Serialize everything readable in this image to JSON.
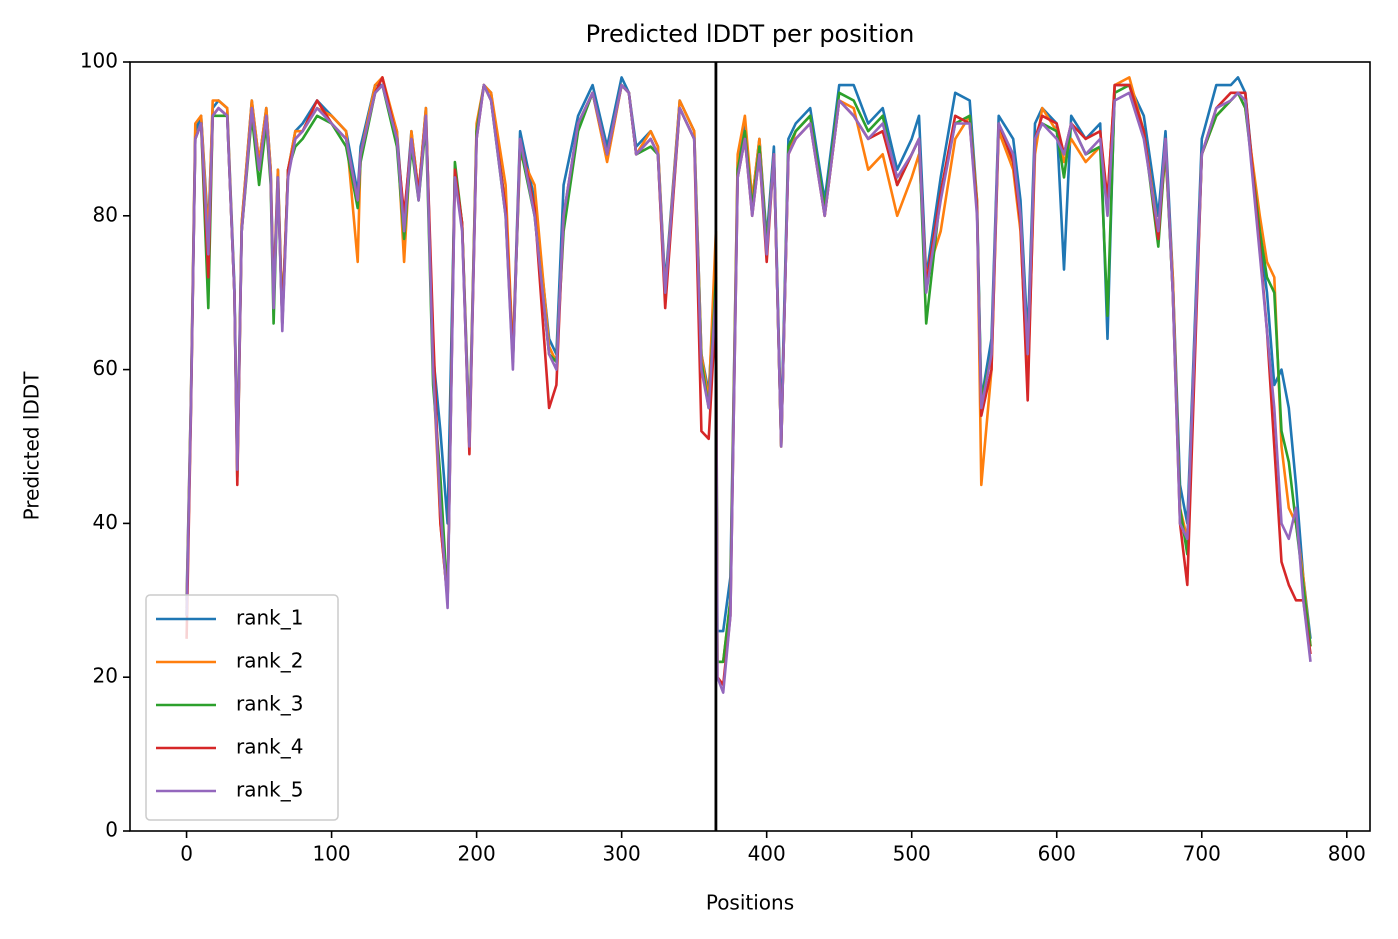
{
  "chart_data": {
    "type": "line",
    "title": "Predicted lDDT per position",
    "xlabel": "Positions",
    "ylabel": "Predicted lDDT",
    "xlim": [
      -39,
      816
    ],
    "xticks": [
      0,
      100,
      200,
      300,
      400,
      500,
      600,
      700,
      800
    ],
    "ylim": [
      0,
      100
    ],
    "yticks": [
      0,
      20,
      40,
      60,
      80,
      100
    ],
    "legend": "lower left",
    "vline": 365,
    "vline_color": "#000000",
    "x": [
      0,
      3,
      6,
      10,
      15,
      18,
      22,
      28,
      33,
      35,
      38,
      45,
      50,
      55,
      58,
      60,
      63,
      66,
      70,
      75,
      80,
      90,
      100,
      110,
      118,
      120,
      130,
      135,
      145,
      150,
      155,
      160,
      165,
      170,
      175,
      180,
      185,
      190,
      195,
      200,
      205,
      210,
      220,
      225,
      230,
      240,
      250,
      255,
      260,
      270,
      280,
      290,
      300,
      305,
      310,
      320,
      325,
      330,
      340,
      350,
      355,
      360,
      365,
      366,
      370,
      375,
      380,
      385,
      390,
      395,
      400,
      405,
      410,
      415,
      420,
      430,
      440,
      450,
      460,
      470,
      480,
      490,
      500,
      505,
      510,
      520,
      530,
      540,
      545,
      548,
      555,
      560,
      570,
      575,
      580,
      585,
      590,
      600,
      605,
      610,
      620,
      630,
      635,
      640,
      650,
      660,
      670,
      675,
      680,
      685,
      690,
      700,
      710,
      720,
      725,
      730,
      740,
      745,
      750,
      755,
      760,
      765,
      770,
      775
    ],
    "series": [
      {
        "name": "rank_1",
        "color": "#1f77b4",
        "values": [
          30,
          56,
          91,
          93,
          78,
          94,
          95,
          94,
          71,
          48,
          79,
          95,
          87,
          94,
          86,
          70,
          86,
          66,
          86,
          91,
          92,
          95,
          93,
          91,
          83,
          89,
          97,
          97,
          91,
          79,
          91,
          83,
          94,
          62,
          52,
          40,
          86,
          79,
          52,
          91,
          97,
          96,
          81,
          62,
          91,
          82,
          64,
          62,
          84,
          93,
          97,
          89,
          98,
          96,
          89,
          91,
          89,
          71,
          95,
          91,
          62,
          57,
          74,
          26,
          26,
          33,
          87,
          92,
          82,
          90,
          77,
          89,
          52,
          90,
          92,
          94,
          82,
          97,
          97,
          92,
          94,
          86,
          90,
          93,
          72,
          85,
          96,
          95,
          82,
          56,
          64,
          93,
          90,
          82,
          64,
          92,
          94,
          92,
          73,
          93,
          90,
          92,
          64,
          97,
          97,
          93,
          80,
          91,
          72,
          45,
          40,
          90,
          97,
          97,
          98,
          96,
          77,
          70,
          58,
          60,
          55,
          45,
          33,
          25
        ]
      },
      {
        "name": "rank_2",
        "color": "#ff7f0e",
        "values": [
          29,
          56,
          92,
          93,
          77,
          95,
          95,
          94,
          70,
          47,
          79,
          95,
          87,
          94,
          86,
          69,
          86,
          67,
          86,
          91,
          91,
          94,
          93,
          91,
          74,
          88,
          97,
          98,
          91,
          74,
          91,
          83,
          94,
          60,
          40,
          30,
          86,
          79,
          51,
          92,
          97,
          96,
          84,
          62,
          88,
          84,
          63,
          61,
          79,
          92,
          96,
          87,
          97,
          96,
          88,
          91,
          89,
          70,
          95,
          91,
          62,
          56,
          78,
          22,
          22,
          30,
          88,
          93,
          82,
          90,
          76,
          88,
          50,
          88,
          91,
          93,
          80,
          95,
          94,
          86,
          88,
          80,
          85,
          88,
          72,
          78,
          90,
          93,
          82,
          45,
          60,
          91,
          86,
          78,
          58,
          88,
          94,
          91,
          87,
          90,
          87,
          89,
          82,
          97,
          98,
          91,
          78,
          88,
          72,
          42,
          38,
          88,
          93,
          95,
          96,
          94,
          80,
          74,
          72,
          50,
          42,
          40,
          33,
          24
        ]
      },
      {
        "name": "rank_3",
        "color": "#2ca02c",
        "values": [
          28,
          55,
          90,
          92,
          68,
          93,
          93,
          93,
          70,
          46,
          78,
          93,
          84,
          92,
          84,
          66,
          85,
          66,
          86,
          89,
          90,
          93,
          92,
          89,
          81,
          87,
          96,
          97,
          89,
          77,
          89,
          82,
          92,
          58,
          46,
          30,
          87,
          79,
          50,
          91,
          97,
          95,
          80,
          61,
          89,
          80,
          62,
          61,
          78,
          91,
          96,
          88,
          97,
          96,
          88,
          89,
          88,
          69,
          94,
          90,
          61,
          55,
          72,
          22,
          22,
          30,
          86,
          91,
          81,
          89,
          76,
          88,
          50,
          89,
          91,
          93,
          81,
          96,
          95,
          91,
          93,
          84,
          88,
          90,
          66,
          83,
          92,
          93,
          81,
          56,
          62,
          92,
          87,
          80,
          62,
          90,
          92,
          91,
          85,
          92,
          88,
          89,
          67,
          96,
          97,
          91,
          76,
          89,
          70,
          42,
          36,
          88,
          93,
          95,
          96,
          94,
          78,
          72,
          70,
          52,
          48,
          40,
          32,
          24
        ]
      },
      {
        "name": "rank_4",
        "color": "#d62728",
        "values": [
          25,
          54,
          90,
          92,
          72,
          93,
          94,
          93,
          70,
          45,
          78,
          94,
          86,
          93,
          85,
          69,
          85,
          66,
          86,
          90,
          91,
          95,
          92,
          90,
          82,
          88,
          96,
          98,
          90,
          80,
          90,
          83,
          93,
          65,
          40,
          30,
          86,
          79,
          49,
          90,
          97,
          95,
          81,
          61,
          90,
          81,
          55,
          58,
          80,
          92,
          96,
          88,
          97,
          96,
          88,
          90,
          88,
          68,
          94,
          90,
          52,
          51,
          68,
          20,
          19,
          28,
          85,
          90,
          80,
          88,
          74,
          88,
          50,
          88,
          90,
          92,
          80,
          95,
          93,
          90,
          91,
          84,
          88,
          90,
          71,
          83,
          93,
          92,
          81,
          54,
          60,
          92,
          87,
          79,
          56,
          90,
          93,
          92,
          88,
          92,
          90,
          91,
          82,
          97,
          97,
          91,
          77,
          90,
          70,
          40,
          32,
          88,
          94,
          96,
          96,
          96,
          76,
          65,
          50,
          35,
          32,
          30,
          30,
          23
        ]
      },
      {
        "name": "rank_5",
        "color": "#9467bd",
        "values": [
          28,
          55,
          90,
          92,
          75,
          93,
          94,
          93,
          70,
          47,
          78,
          94,
          86,
          93,
          85,
          68,
          85,
          65,
          85,
          90,
          91,
          94,
          92,
          90,
          82,
          88,
          96,
          97,
          90,
          78,
          90,
          82,
          93,
          60,
          42,
          29,
          85,
          78,
          50,
          90,
          97,
          95,
          80,
          60,
          90,
          80,
          62,
          60,
          80,
          92,
          96,
          88,
          97,
          96,
          88,
          90,
          88,
          70,
          94,
          90,
          60,
          55,
          70,
          20,
          18,
          28,
          85,
          90,
          80,
          88,
          75,
          88,
          50,
          88,
          90,
          92,
          80,
          95,
          93,
          90,
          92,
          85,
          88,
          90,
          70,
          82,
          92,
          92,
          80,
          55,
          62,
          92,
          88,
          80,
          62,
          90,
          92,
          90,
          88,
          92,
          88,
          90,
          80,
          95,
          96,
          90,
          78,
          90,
          70,
          40,
          38,
          88,
          94,
          95,
          96,
          95,
          75,
          65,
          55,
          40,
          38,
          42,
          30,
          22
        ]
      }
    ]
  }
}
